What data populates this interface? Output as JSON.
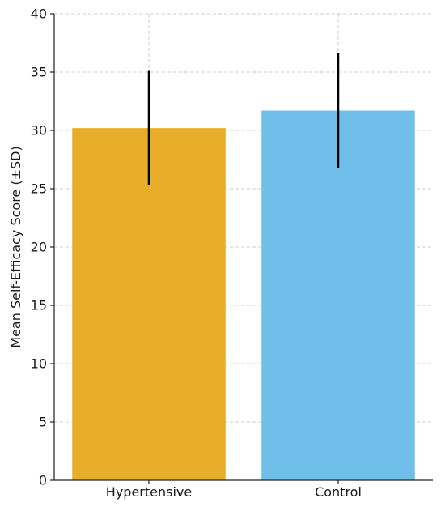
{
  "chart_data": {
    "type": "bar",
    "title": "",
    "xlabel": "",
    "ylabel": "Mean Self-Efficacy Score (±SD)",
    "categories": [
      "Hypertensive",
      "Control"
    ],
    "values": [
      30.2,
      31.7
    ],
    "error_sd": [
      4.9,
      4.9
    ],
    "colors": [
      "#E8AE2A",
      "#70BFEA"
    ],
    "ylim": [
      0,
      40
    ],
    "yticks": [
      0,
      5,
      10,
      15,
      20,
      25,
      30,
      35,
      40
    ],
    "grid": true
  }
}
